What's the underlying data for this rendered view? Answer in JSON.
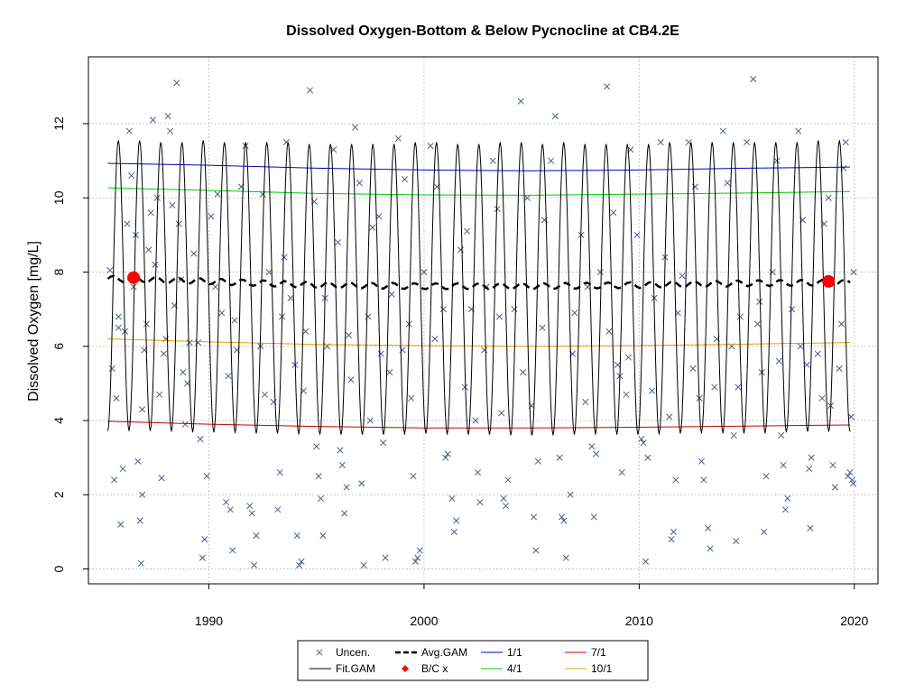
{
  "chart_data": {
    "type": "scatter",
    "title": "Dissolved Oxygen-Bottom & Below Pycnocline at CB4.2E",
    "xlabel": "",
    "ylabel": "Dissolved Oxygen [mg/L]",
    "xlim": [
      1984.4,
      2021.1
    ],
    "ylim": [
      -0.4,
      13.8
    ],
    "x_ticks": [
      1990,
      2000,
      2010,
      2020
    ],
    "y_ticks": [
      0,
      2,
      4,
      6,
      8,
      10,
      12
    ],
    "grid": true,
    "legend_position": "bottom-center",
    "legend": {
      "items": [
        {
          "label": "Uncen.",
          "kind": "cross",
          "color": "#4a5f8a"
        },
        {
          "label": "Fit.GAM",
          "kind": "line",
          "color": "#000000"
        },
        {
          "label": "Avg.GAM",
          "kind": "dashed",
          "color": "#000000"
        },
        {
          "label": "B/C x",
          "kind": "dot",
          "color": "#ff0000"
        },
        {
          "label": "1/1",
          "kind": "line",
          "color": "#0000cc"
        },
        {
          "label": "4/1",
          "kind": "line",
          "color": "#00cc00"
        },
        {
          "label": "7/1",
          "kind": "line",
          "color": "#cc0000"
        },
        {
          "label": "10/1",
          "kind": "line",
          "color": "#e6a000"
        }
      ]
    },
    "fit_gam": {
      "x_start": 1985.3,
      "x_end": 2019.8,
      "peaks": [
        11.55,
        11.55,
        11.5,
        11.5,
        11.55,
        11.5,
        11.5,
        11.5,
        11.5,
        11.45,
        11.45,
        11.45,
        11.45,
        11.45,
        11.5,
        11.5,
        11.45,
        11.45,
        11.5,
        11.5,
        11.45,
        11.5,
        11.45,
        11.45,
        11.45,
        11.45,
        11.5,
        11.5,
        11.5,
        11.5,
        11.5,
        11.5,
        11.5,
        11.55,
        11.55
      ],
      "troughs": [
        3.72,
        3.72,
        3.72,
        3.7,
        3.68,
        3.68,
        3.66,
        3.65,
        3.65,
        3.62,
        3.62,
        3.62,
        3.62,
        3.62,
        3.65,
        3.65,
        3.62,
        3.62,
        3.62,
        3.6,
        3.6,
        3.62,
        3.62,
        3.65,
        3.62,
        3.62,
        3.65,
        3.65,
        3.68,
        3.65,
        3.65,
        3.68,
        3.7,
        3.7,
        3.7
      ]
    },
    "avg_gam": {
      "x": [
        1985.3,
        1990,
        1995,
        2000,
        2005,
        2010,
        2015,
        2019.8
      ],
      "y": [
        7.82,
        7.75,
        7.65,
        7.62,
        7.62,
        7.65,
        7.7,
        7.72
      ]
    },
    "bc_points": [
      {
        "x": 1986.5,
        "y": 7.85
      },
      {
        "x": 2018.8,
        "y": 7.75
      }
    ],
    "series": [
      {
        "name": "1/1",
        "color": "#0000cc",
        "x": [
          1985.3,
          1990,
          1995,
          2000,
          2005,
          2010,
          2015,
          2019.8
        ],
        "y": [
          10.93,
          10.88,
          10.8,
          10.75,
          10.73,
          10.75,
          10.8,
          10.83
        ]
      },
      {
        "name": "4/1",
        "color": "#00cc00",
        "x": [
          1985.3,
          1990,
          1995,
          2000,
          2005,
          2010,
          2015,
          2019.8
        ],
        "y": [
          10.27,
          10.2,
          10.12,
          10.08,
          10.07,
          10.1,
          10.13,
          10.17
        ]
      },
      {
        "name": "10/1",
        "color": "#e6a000",
        "x": [
          1985.3,
          1990,
          1995,
          2000,
          2005,
          2010,
          2015,
          2019.8
        ],
        "y": [
          6.2,
          6.12,
          6.05,
          6.02,
          6.0,
          6.02,
          6.06,
          6.1
        ]
      },
      {
        "name": "7/1",
        "color": "#cc0000",
        "x": [
          1985.3,
          1990,
          1995,
          2000,
          2005,
          2010,
          2015,
          2019.8
        ],
        "y": [
          3.98,
          3.9,
          3.84,
          3.8,
          3.8,
          3.82,
          3.85,
          3.88
        ]
      }
    ],
    "uncen_points": [
      [
        1985.4,
        8.05
      ],
      [
        1985.5,
        5.4
      ],
      [
        1985.6,
        2.4
      ],
      [
        1985.7,
        4.6
      ],
      [
        1985.8,
        6.8
      ],
      [
        1985.9,
        1.2
      ],
      [
        1986.0,
        2.7
      ],
      [
        1986.1,
        6.4
      ],
      [
        1986.2,
        9.3
      ],
      [
        1986.3,
        11.8
      ],
      [
        1986.4,
        10.6
      ],
      [
        1986.5,
        7.6
      ],
      [
        1986.6,
        9.0
      ],
      [
        1986.7,
        2.9
      ],
      [
        1986.8,
        1.3
      ],
      [
        1986.85,
        0.15
      ],
      [
        1986.9,
        2.0
      ],
      [
        1987.0,
        5.9
      ],
      [
        1987.1,
        6.6
      ],
      [
        1987.2,
        8.6
      ],
      [
        1987.3,
        9.6
      ],
      [
        1987.4,
        12.1
      ],
      [
        1987.6,
        10.0
      ],
      [
        1987.7,
        4.7
      ],
      [
        1987.8,
        2.45
      ],
      [
        1987.9,
        5.8
      ],
      [
        1988.0,
        6.2
      ],
      [
        1988.1,
        12.2
      ],
      [
        1988.2,
        11.8
      ],
      [
        1988.3,
        9.8
      ],
      [
        1988.5,
        13.1
      ],
      [
        1988.6,
        9.3
      ],
      [
        1988.7,
        7.8
      ],
      [
        1988.8,
        5.3
      ],
      [
        1988.9,
        3.9
      ],
      [
        1989.1,
        6.1
      ],
      [
        1989.3,
        8.5
      ],
      [
        1989.5,
        6.1
      ],
      [
        1989.6,
        3.5
      ],
      [
        1989.7,
        0.3
      ],
      [
        1989.8,
        0.8
      ],
      [
        1989.9,
        2.5
      ],
      [
        1990.1,
        9.5
      ],
      [
        1990.4,
        10.1
      ],
      [
        1990.6,
        6.9
      ],
      [
        1990.8,
        1.8
      ],
      [
        1990.9,
        5.2
      ],
      [
        1991.0,
        1.6
      ],
      [
        1991.1,
        0.5
      ],
      [
        1991.2,
        6.7
      ],
      [
        1991.5,
        10.3
      ],
      [
        1991.7,
        11.4
      ],
      [
        1991.9,
        1.7
      ],
      [
        1992.0,
        1.5
      ],
      [
        1992.1,
        0.1
      ],
      [
        1992.2,
        0.9
      ],
      [
        1992.4,
        6.0
      ],
      [
        1992.5,
        10.1
      ],
      [
        1992.8,
        8.0
      ],
      [
        1993.0,
        4.5
      ],
      [
        1993.2,
        1.6
      ],
      [
        1993.3,
        2.6
      ],
      [
        1993.5,
        8.4
      ],
      [
        1993.6,
        11.5
      ],
      [
        1993.8,
        7.3
      ],
      [
        1994.0,
        5.5
      ],
      [
        1994.1,
        0.9
      ],
      [
        1994.2,
        0.1
      ],
      [
        1994.3,
        0.2
      ],
      [
        1994.5,
        6.4
      ],
      [
        1994.7,
        12.9
      ],
      [
        1994.9,
        9.9
      ],
      [
        1995.0,
        3.3
      ],
      [
        1995.1,
        2.5
      ],
      [
        1995.2,
        1.9
      ],
      [
        1995.3,
        0.9
      ],
      [
        1995.5,
        6.0
      ],
      [
        1995.8,
        11.3
      ],
      [
        1996.0,
        8.8
      ],
      [
        1996.1,
        3.2
      ],
      [
        1996.2,
        2.8
      ],
      [
        1996.3,
        1.5
      ],
      [
        1996.4,
        2.2
      ],
      [
        1996.5,
        6.3
      ],
      [
        1996.8,
        11.9
      ],
      [
        1997.0,
        10.4
      ],
      [
        1997.1,
        2.3
      ],
      [
        1997.2,
        0.1
      ],
      [
        1997.4,
        6.8
      ],
      [
        1997.6,
        9.2
      ],
      [
        1997.9,
        9.5
      ],
      [
        1998.0,
        5.8
      ],
      [
        1998.1,
        3.4
      ],
      [
        1998.2,
        0.3
      ],
      [
        1998.4,
        5.3
      ],
      [
        1998.8,
        11.6
      ],
      [
        1999.1,
        10.5
      ],
      [
        1999.3,
        6.6
      ],
      [
        1999.4,
        4.6
      ],
      [
        1999.5,
        2.5
      ],
      [
        1999.6,
        0.2
      ],
      [
        1999.7,
        0.3
      ],
      [
        1999.8,
        0.5
      ],
      [
        2000.0,
        8.0
      ],
      [
        2000.3,
        11.4
      ],
      [
        2000.6,
        10.3
      ],
      [
        2000.9,
        7.0
      ],
      [
        2001.0,
        3.0
      ],
      [
        2001.1,
        3.1
      ],
      [
        2001.3,
        1.9
      ],
      [
        2001.4,
        1.0
      ],
      [
        2001.5,
        1.3
      ],
      [
        2001.7,
        8.6
      ],
      [
        2002.0,
        9.1
      ],
      [
        2002.2,
        7.0
      ],
      [
        2002.4,
        4.0
      ],
      [
        2002.5,
        2.6
      ],
      [
        2002.6,
        1.8
      ],
      [
        2002.8,
        5.9
      ],
      [
        2003.2,
        11.0
      ],
      [
        2003.4,
        9.7
      ],
      [
        2003.6,
        4.2
      ],
      [
        2003.7,
        1.9
      ],
      [
        2003.8,
        1.7
      ],
      [
        2003.9,
        2.4
      ],
      [
        2004.2,
        7.0
      ],
      [
        2004.5,
        12.6
      ],
      [
        2004.8,
        10.0
      ],
      [
        2005.0,
        4.4
      ],
      [
        2005.1,
        1.4
      ],
      [
        2005.2,
        0.5
      ],
      [
        2005.3,
        2.9
      ],
      [
        2005.6,
        9.4
      ],
      [
        2005.9,
        11.0
      ],
      [
        2006.1,
        12.2
      ],
      [
        2006.3,
        3.0
      ],
      [
        2006.4,
        1.4
      ],
      [
        2006.5,
        1.3
      ],
      [
        2006.6,
        0.3
      ],
      [
        2006.8,
        2.0
      ],
      [
        2007.0,
        6.9
      ],
      [
        2007.3,
        9.0
      ],
      [
        2007.6,
        7.6
      ],
      [
        2007.8,
        3.3
      ],
      [
        2007.9,
        1.4
      ],
      [
        2008.0,
        3.1
      ],
      [
        2008.2,
        8.0
      ],
      [
        2008.5,
        13.0
      ],
      [
        2008.8,
        9.6
      ],
      [
        2009.0,
        5.5
      ],
      [
        2009.1,
        5.2
      ],
      [
        2009.2,
        2.6
      ],
      [
        2009.4,
        4.7
      ],
      [
        2009.6,
        11.3
      ],
      [
        2009.9,
        9.0
      ],
      [
        2010.1,
        3.5
      ],
      [
        2010.2,
        3.4
      ],
      [
        2010.3,
        0.2
      ],
      [
        2010.4,
        3.0
      ],
      [
        2010.7,
        7.3
      ],
      [
        2011.0,
        11.5
      ],
      [
        2011.2,
        8.4
      ],
      [
        2011.4,
        4.1
      ],
      [
        2011.5,
        0.8
      ],
      [
        2011.6,
        1.0
      ],
      [
        2011.7,
        2.4
      ],
      [
        2012.0,
        7.9
      ],
      [
        2012.3,
        11.5
      ],
      [
        2012.6,
        10.3
      ],
      [
        2012.8,
        4.6
      ],
      [
        2012.9,
        2.9
      ],
      [
        2013.0,
        2.4
      ],
      [
        2013.2,
        1.1
      ],
      [
        2013.3,
        0.55
      ],
      [
        2013.5,
        4.9
      ],
      [
        2013.9,
        11.8
      ],
      [
        2014.1,
        10.4
      ],
      [
        2014.3,
        6.0
      ],
      [
        2014.4,
        3.6
      ],
      [
        2014.5,
        0.75
      ],
      [
        2014.7,
        6.8
      ],
      [
        2015.0,
        11.5
      ],
      [
        2015.3,
        13.2
      ],
      [
        2015.5,
        6.6
      ],
      [
        2015.7,
        5.3
      ],
      [
        2015.8,
        1.0
      ],
      [
        2015.9,
        2.5
      ],
      [
        2016.2,
        8.0
      ],
      [
        2016.4,
        11.0
      ],
      [
        2016.6,
        3.6
      ],
      [
        2016.7,
        2.8
      ],
      [
        2016.8,
        1.6
      ],
      [
        2016.9,
        1.9
      ],
      [
        2017.1,
        7.0
      ],
      [
        2017.4,
        11.8
      ],
      [
        2017.6,
        9.4
      ],
      [
        2017.8,
        5.5
      ],
      [
        2017.9,
        2.7
      ],
      [
        2017.95,
        1.1
      ],
      [
        2018.0,
        3.0
      ],
      [
        2018.3,
        5.8
      ],
      [
        2018.6,
        9.3
      ],
      [
        2018.8,
        10.0
      ],
      [
        2018.9,
        4.4
      ],
      [
        2019.0,
        2.8
      ],
      [
        2019.1,
        2.2
      ],
      [
        2019.3,
        5.4
      ],
      [
        2019.5,
        10.8
      ],
      [
        2019.6,
        11.5
      ],
      [
        2019.7,
        2.5
      ],
      [
        2019.8,
        2.6
      ],
      [
        2019.85,
        4.1
      ],
      [
        2019.9,
        2.4
      ],
      [
        2019.95,
        2.3
      ],
      [
        2019.97,
        8.0
      ],
      [
        1985.8,
        6.5
      ],
      [
        1986.9,
        4.3
      ],
      [
        1987.5,
        8.2
      ],
      [
        1988.4,
        7.1
      ],
      [
        1989.0,
        5.0
      ],
      [
        1990.3,
        7.6
      ],
      [
        1991.3,
        5.9
      ],
      [
        1992.6,
        4.7
      ],
      [
        1993.4,
        6.8
      ],
      [
        1994.4,
        4.8
      ],
      [
        1995.4,
        7.3
      ],
      [
        1996.6,
        5.1
      ],
      [
        1997.5,
        4.0
      ],
      [
        1998.5,
        7.4
      ],
      [
        1999.0,
        5.9
      ],
      [
        2000.5,
        6.2
      ],
      [
        2001.9,
        4.9
      ],
      [
        2002.9,
        7.6
      ],
      [
        2003.5,
        6.8
      ],
      [
        2004.6,
        5.3
      ],
      [
        2005.5,
        6.5
      ],
      [
        2006.9,
        5.8
      ],
      [
        2007.5,
        4.5
      ],
      [
        2008.6,
        6.4
      ],
      [
        2009.5,
        5.7
      ],
      [
        2010.6,
        4.8
      ],
      [
        2011.8,
        6.9
      ],
      [
        2012.5,
        5.4
      ],
      [
        2013.6,
        6.2
      ],
      [
        2014.6,
        4.9
      ],
      [
        2015.6,
        7.2
      ],
      [
        2016.5,
        5.6
      ],
      [
        2017.5,
        6.0
      ],
      [
        2018.5,
        4.6
      ],
      [
        2019.4,
        6.6
      ]
    ]
  }
}
